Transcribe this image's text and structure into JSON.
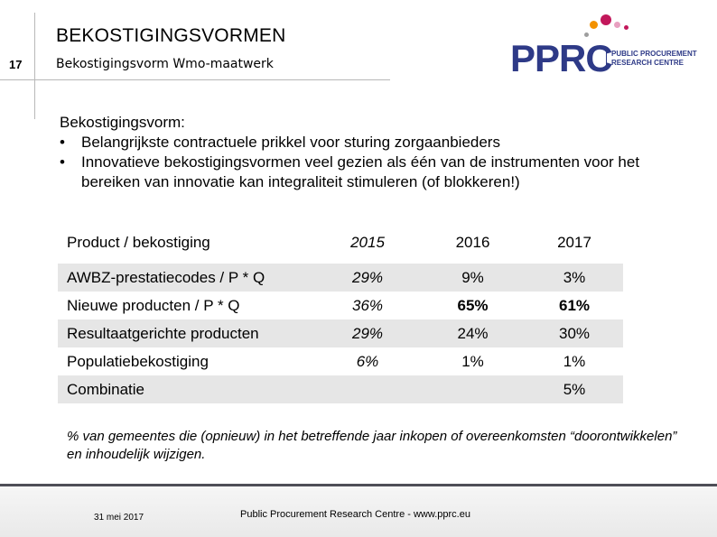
{
  "header": {
    "title": "BEKOSTIGINGSVORMEN",
    "slide_number": "17",
    "subtitle": "Bekostigingsvorm Wmo-maatwerk"
  },
  "logo": {
    "text": "PPRC",
    "line1": "PUBLIC PROCUREMENT",
    "line2": "RESEARCH CENTRE",
    "colors": {
      "navy": "#2e3a87",
      "magenta": "#c2185b",
      "orange": "#f39200",
      "pink": "#e8a0c0",
      "grey": "#9e9e9e"
    }
  },
  "intro": {
    "heading": "Bekostigingsvorm:",
    "bullets": [
      "Belangrijkste contractuele prikkel voor sturing zorgaanbieders",
      "Innovatieve bekostigingsvormen veel gezien als één van de instrumenten voor het bereiken van innovatie kan integraliteit stimuleren (of blokkeren!)"
    ]
  },
  "table": {
    "headers": [
      "Product / bekostiging",
      "2015",
      "2016",
      "2017"
    ],
    "rows": [
      [
        "AWBZ-prestatiecodes / P * Q",
        "29%",
        "9%",
        "3%"
      ],
      [
        "Nieuwe producten / P * Q",
        "36%",
        "65%",
        "61%"
      ],
      [
        "Resultaatgerichte producten",
        "29%",
        "24%",
        "30%"
      ],
      [
        "Populatiebekostiging",
        "6%",
        "1%",
        "1%"
      ],
      [
        "Combinatie",
        "",
        "",
        "5%"
      ]
    ]
  },
  "footnote": "% van gemeentes die (opnieuw) in het betreffende jaar inkopen of overeenkomsten “doorontwikkelen” en inhoudelijk wijzigen.",
  "footer": {
    "date": "31 mei 2017",
    "credit": "Public Procurement Research Centre - www.pprc.eu"
  }
}
